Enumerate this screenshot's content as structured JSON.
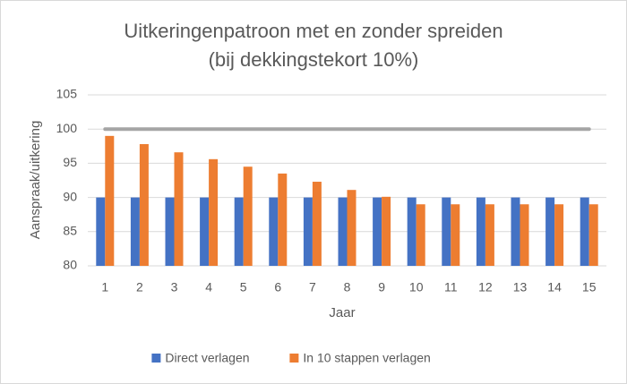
{
  "chart_data": {
    "type": "bar",
    "title": [
      "Uitkeringenpatroon met en zonder spreiden",
      "(bij dekkingstekort 10%)"
    ],
    "x_label": "Jaar",
    "y_label": "Aanspraak/uitkering",
    "categories": [
      "1",
      "2",
      "3",
      "4",
      "5",
      "6",
      "7",
      "8",
      "9",
      "10",
      "11",
      "12",
      "13",
      "14",
      "15"
    ],
    "series": [
      {
        "name": "Direct verlagen",
        "color": "#4472c4",
        "kind": "bar",
        "values": [
          90,
          90,
          90,
          90,
          90,
          90,
          90,
          90,
          90,
          90,
          90,
          90,
          90,
          90,
          90
        ]
      },
      {
        "name": "In 10 stappen verlagen",
        "color": "#ed7d31",
        "kind": "bar",
        "values": [
          99.0,
          97.8,
          96.6,
          95.6,
          94.5,
          93.5,
          92.3,
          91.1,
          90.1,
          89.0,
          89.0,
          89.0,
          89.0,
          89.0,
          89.0
        ]
      },
      {
        "color": "#a5a5a5",
        "kind": "line",
        "values": [
          100,
          100,
          100,
          100,
          100,
          100,
          100,
          100,
          100,
          100,
          100,
          100,
          100,
          100,
          100
        ]
      }
    ],
    "ylim": [
      80,
      105
    ],
    "yticks": [
      80,
      85,
      90,
      95,
      100,
      105
    ],
    "grid": true,
    "legend": "bottom"
  }
}
